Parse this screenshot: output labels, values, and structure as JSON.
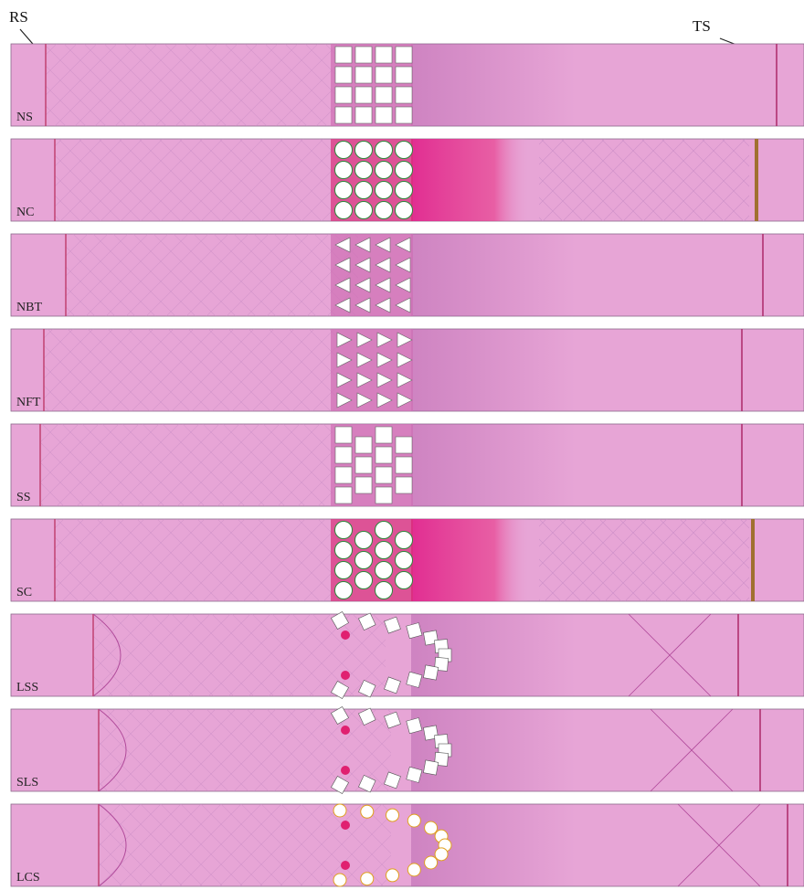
{
  "annotations": {
    "left": "RS",
    "right": "TS"
  },
  "panels": [
    {
      "label": "NS"
    },
    {
      "label": "NC"
    },
    {
      "label": "NBT"
    },
    {
      "label": "NFT"
    },
    {
      "label": "SS"
    },
    {
      "label": "SC"
    },
    {
      "label": "LSS"
    },
    {
      "label": "SLS"
    },
    {
      "label": "LCS"
    }
  ]
}
